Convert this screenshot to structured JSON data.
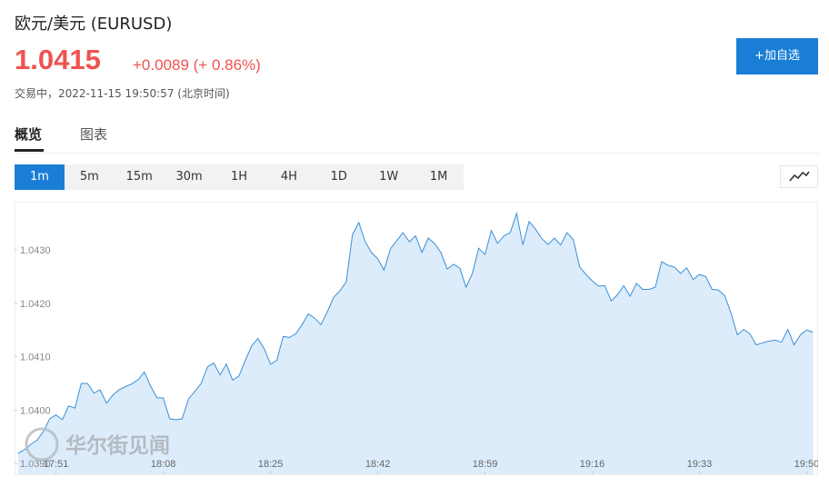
{
  "header": {
    "title": "欧元/美元  (EURUSD)",
    "price": "1.0415",
    "change": "+0.0089 (+ 0.86%)",
    "status": "交易中，2022-11-15 19:50:57 (北京时间)",
    "button": "+加自选"
  },
  "tabs": [
    "概览",
    "图表"
  ],
  "intervals": [
    "1m",
    "5m",
    "15m",
    "30m",
    "1H",
    "4H",
    "1D",
    "1W",
    "1M"
  ],
  "watermark": "华尔街见闻",
  "chart_data": {
    "type": "area",
    "color": "#3b8fd6",
    "fill": "#dcecfb",
    "grid": false,
    "categories": [
      null,
      null,
      null,
      null,
      null,
      null,
      "17:51",
      null,
      null,
      null,
      null,
      null,
      null,
      null,
      null,
      null,
      null,
      null,
      null,
      null,
      null,
      null,
      null,
      "18:08",
      null,
      null,
      null,
      null,
      null,
      null,
      null,
      null,
      null,
      null,
      null,
      null,
      null,
      null,
      null,
      null,
      "18:25",
      null,
      null,
      null,
      null,
      null,
      null,
      null,
      null,
      null,
      null,
      null,
      null,
      null,
      null,
      null,
      null,
      "18:42",
      null,
      null,
      null,
      null,
      null,
      null,
      null,
      null,
      null,
      null,
      null,
      null,
      null,
      null,
      null,
      null,
      "18:59",
      null,
      null,
      null,
      null,
      null,
      null,
      null,
      null,
      null,
      null,
      null,
      null,
      null,
      null,
      null,
      null,
      "19:16",
      null,
      null,
      null,
      null,
      null,
      null,
      null,
      null,
      null,
      null,
      null,
      null,
      null,
      null,
      null,
      null,
      "19:33",
      null,
      null,
      null,
      null,
      null,
      null,
      null,
      null,
      null,
      null,
      null,
      null,
      null,
      null,
      null,
      null,
      "19:50",
      null
    ],
    "values": [
      1.03919,
      1.03926,
      1.03936,
      1.03944,
      1.0396,
      1.03984,
      1.03991,
      1.03982,
      1.04008,
      1.04004,
      1.0405,
      1.0405,
      1.04032,
      1.04038,
      1.04013,
      1.04028,
      1.04038,
      1.04044,
      1.04049,
      1.04057,
      1.04071,
      1.04045,
      1.04023,
      1.04023,
      1.03984,
      1.03982,
      1.03984,
      1.04021,
      1.04035,
      1.0405,
      1.04081,
      1.04088,
      1.04066,
      1.04086,
      1.04056,
      1.04064,
      1.04093,
      1.0412,
      1.04134,
      1.04115,
      1.04086,
      1.04093,
      1.04138,
      1.04136,
      1.04143,
      1.0416,
      1.0418,
      1.04172,
      1.0416,
      1.04184,
      1.04211,
      1.04223,
      1.0424,
      1.04329,
      1.04351,
      1.04315,
      1.04295,
      1.04283,
      1.04262,
      1.04302,
      1.04317,
      1.04332,
      1.04315,
      1.04326,
      1.04295,
      1.04322,
      1.04312,
      1.04295,
      1.04264,
      1.04273,
      1.04266,
      1.0423,
      1.04256,
      1.04303,
      1.04291,
      1.04336,
      1.04312,
      1.04326,
      1.04332,
      1.04368,
      1.04309,
      1.04353,
      1.04339,
      1.04321,
      1.0431,
      1.04322,
      1.04309,
      1.04332,
      1.04319,
      1.04268,
      1.04254,
      1.04242,
      1.04232,
      1.04233,
      1.04204,
      1.04216,
      1.04233,
      1.04213,
      1.04237,
      1.04226,
      1.04226,
      1.0423,
      1.04278,
      1.04271,
      1.04268,
      1.04256,
      1.04266,
      1.04244,
      1.04254,
      1.0425,
      1.04226,
      1.04225,
      1.04214,
      1.04182,
      1.04141,
      1.04151,
      1.04143,
      1.04122,
      1.04126,
      1.04129,
      1.04131,
      1.04127,
      1.04151,
      1.04122,
      1.04141,
      1.0415,
      1.04146
    ],
    "ylim": [
      1.0388,
      1.0439
    ],
    "yticks": [
      {
        "value": 1.039,
        "label": "1.0390"
      },
      {
        "value": 1.04,
        "label": "1.0400"
      },
      {
        "value": 1.041,
        "label": "1.0410"
      },
      {
        "value": 1.042,
        "label": "1.0420"
      },
      {
        "value": 1.043,
        "label": "1.0430"
      }
    ]
  }
}
